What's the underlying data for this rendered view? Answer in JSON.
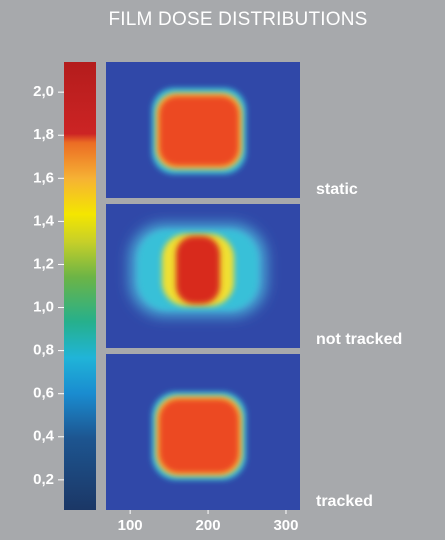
{
  "chart_data": {
    "type": "heatmap",
    "title": "FILM DOSE DISTRIBUTIONS",
    "panels": [
      "static",
      "not tracked",
      "tracked"
    ],
    "clim": [
      0.06,
      2.14
    ],
    "cticks": [
      {
        "value": 0.2,
        "label": "0,2"
      },
      {
        "value": 0.4,
        "label": "0,4"
      },
      {
        "value": 0.6,
        "label": "0,6"
      },
      {
        "value": 0.8,
        "label": "0,8"
      },
      {
        "value": 1.0,
        "label": "1,0"
      },
      {
        "value": 1.2,
        "label": "1,2"
      },
      {
        "value": 1.4,
        "label": "1,4"
      },
      {
        "value": 1.6,
        "label": "1,6"
      },
      {
        "value": 1.8,
        "label": "1,8"
      },
      {
        "value": 2.0,
        "label": "2,0"
      }
    ],
    "xlim": [
      69,
      318
    ],
    "xticks": [
      100,
      200,
      300
    ]
  }
}
